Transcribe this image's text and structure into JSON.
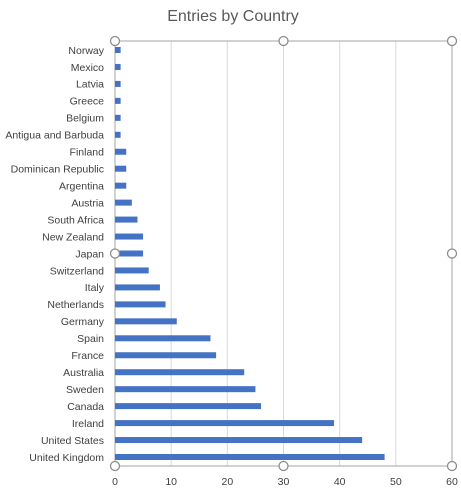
{
  "chart_data": {
    "type": "bar",
    "orientation": "horizontal",
    "title": "Entries by Country",
    "categories": [
      "Norway",
      "Mexico",
      "Latvia",
      "Greece",
      "Belgium",
      "Antigua and Barbuda",
      "Finland",
      "Dominican Republic",
      "Argentina",
      "Austria",
      "South Africa",
      "New Zealand",
      "Japan",
      "Switzerland",
      "Italy",
      "Netherlands",
      "Germany",
      "Spain",
      "France",
      "Australia",
      "Sweden",
      "Canada",
      "Ireland",
      "United States",
      "United Kingdom"
    ],
    "values": [
      1,
      1,
      1,
      1,
      1,
      1,
      2,
      2,
      2,
      3,
      4,
      5,
      5,
      6,
      8,
      9,
      11,
      17,
      18,
      23,
      25,
      26,
      39,
      44,
      48
    ],
    "xlim": [
      0,
      60
    ],
    "xticks": [
      0,
      10,
      20,
      30,
      40,
      50,
      60
    ],
    "grid": "vertical",
    "legend": "none",
    "bar_color": "#4472C4",
    "selected": true
  }
}
